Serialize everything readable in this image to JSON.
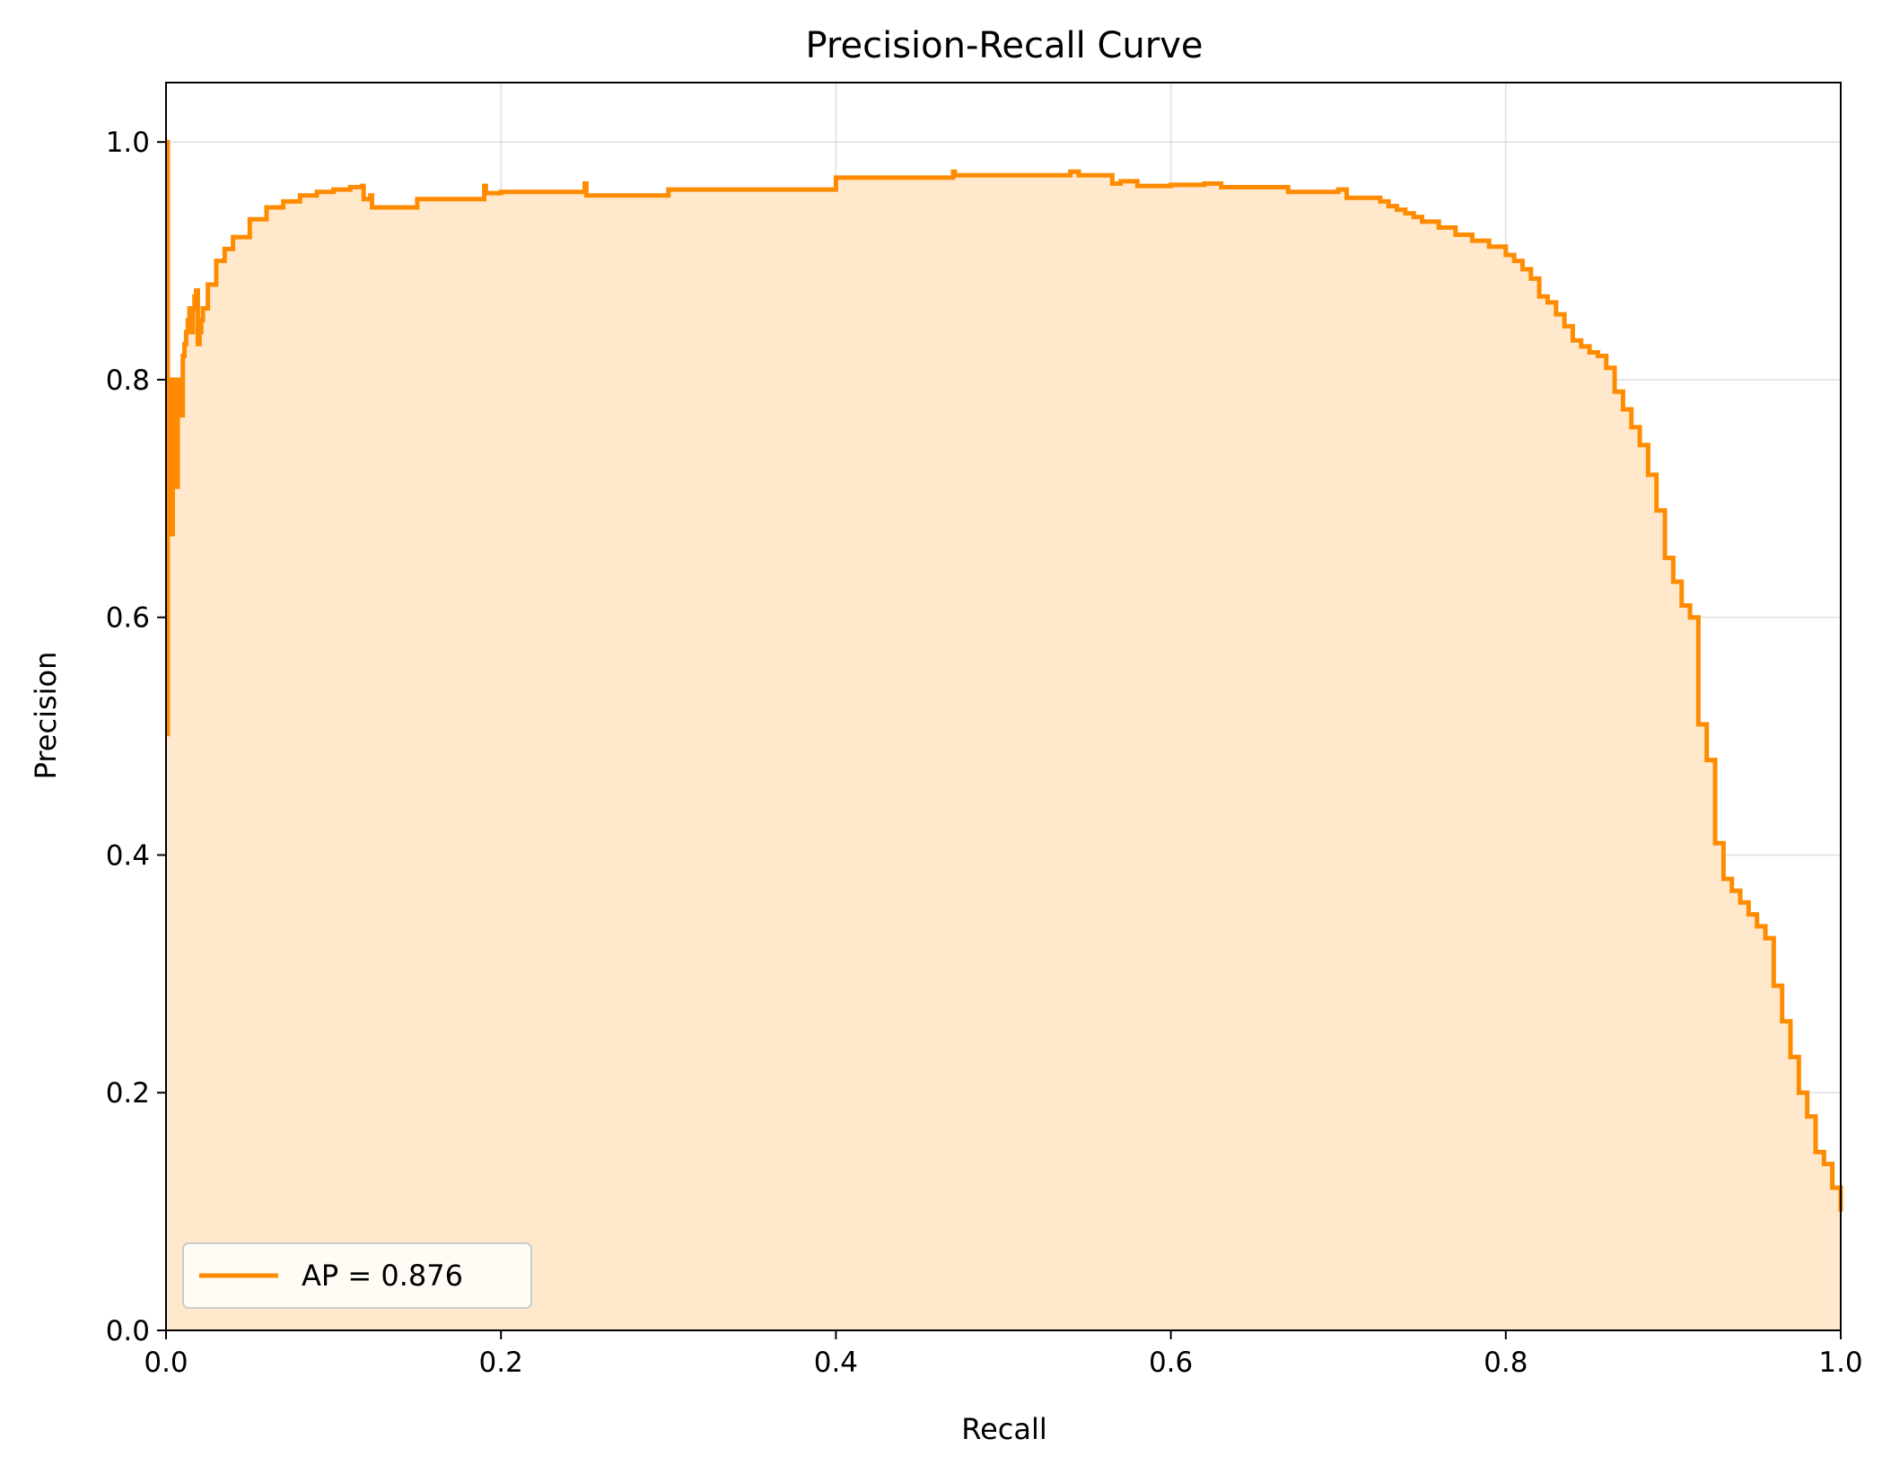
{
  "chart_data": {
    "type": "line",
    "title": "Precision-Recall Curve",
    "xlabel": "Recall",
    "ylabel": "Precision",
    "xlim": [
      0.0,
      1.0
    ],
    "ylim": [
      0.0,
      1.05
    ],
    "xticks": [
      0.0,
      0.2,
      0.4,
      0.6,
      0.8,
      1.0
    ],
    "xtick_labels": [
      "0.0",
      "0.2",
      "0.4",
      "0.6",
      "0.8",
      "1.0"
    ],
    "yticks": [
      0.0,
      0.2,
      0.4,
      0.6,
      0.8,
      1.0
    ],
    "ytick_labels": [
      "0.0",
      "0.2",
      "0.4",
      "0.6",
      "0.8",
      "1.0"
    ],
    "grid": true,
    "legend": {
      "placement": "lower-left",
      "entries": [
        "AP = 0.876"
      ]
    },
    "fill_under_curve": true,
    "colors": {
      "line": "#ff8c00",
      "fill": "#ffe8cc"
    },
    "series": [
      {
        "name": "AP = 0.876",
        "step": true,
        "x": [
          0.0,
          0.001,
          0.001,
          0.002,
          0.002,
          0.003,
          0.004,
          0.005,
          0.006,
          0.007,
          0.008,
          0.009,
          0.01,
          0.011,
          0.012,
          0.013,
          0.014,
          0.015,
          0.016,
          0.017,
          0.018,
          0.019,
          0.02,
          0.021,
          0.022,
          0.025,
          0.03,
          0.035,
          0.04,
          0.05,
          0.06,
          0.07,
          0.08,
          0.09,
          0.1,
          0.11,
          0.117,
          0.118,
          0.122,
          0.123,
          0.125,
          0.15,
          0.19,
          0.191,
          0.2,
          0.25,
          0.251,
          0.3,
          0.4,
          0.47,
          0.471,
          0.54,
          0.545,
          0.565,
          0.57,
          0.58,
          0.6,
          0.62,
          0.63,
          0.65,
          0.67,
          0.7,
          0.705,
          0.72,
          0.725,
          0.73,
          0.735,
          0.74,
          0.745,
          0.75,
          0.76,
          0.77,
          0.78,
          0.79,
          0.8,
          0.805,
          0.81,
          0.815,
          0.82,
          0.825,
          0.83,
          0.835,
          0.84,
          0.845,
          0.85,
          0.855,
          0.86,
          0.865,
          0.87,
          0.875,
          0.88,
          0.885,
          0.89,
          0.895,
          0.9,
          0.905,
          0.91,
          0.915,
          0.92,
          0.925,
          0.93,
          0.935,
          0.94,
          0.945,
          0.95,
          0.955,
          0.96,
          0.965,
          0.97,
          0.975,
          0.98,
          0.985,
          0.99,
          0.995,
          1.0
        ],
        "y": [
          1.0,
          0.5,
          0.75,
          0.67,
          0.8,
          0.67,
          0.78,
          0.8,
          0.71,
          0.79,
          0.8,
          0.77,
          0.82,
          0.83,
          0.84,
          0.85,
          0.86,
          0.84,
          0.86,
          0.87,
          0.875,
          0.83,
          0.84,
          0.85,
          0.86,
          0.88,
          0.9,
          0.91,
          0.92,
          0.935,
          0.945,
          0.95,
          0.955,
          0.958,
          0.96,
          0.962,
          0.963,
          0.952,
          0.955,
          0.945,
          0.945,
          0.952,
          0.963,
          0.957,
          0.958,
          0.965,
          0.955,
          0.96,
          0.97,
          0.975,
          0.972,
          0.975,
          0.972,
          0.965,
          0.967,
          0.963,
          0.964,
          0.965,
          0.962,
          0.962,
          0.958,
          0.96,
          0.953,
          0.953,
          0.95,
          0.946,
          0.943,
          0.94,
          0.937,
          0.933,
          0.928,
          0.922,
          0.917,
          0.912,
          0.905,
          0.9,
          0.893,
          0.885,
          0.87,
          0.865,
          0.855,
          0.845,
          0.833,
          0.828,
          0.823,
          0.82,
          0.81,
          0.79,
          0.775,
          0.76,
          0.745,
          0.72,
          0.69,
          0.65,
          0.63,
          0.61,
          0.6,
          0.51,
          0.48,
          0.41,
          0.38,
          0.37,
          0.36,
          0.35,
          0.34,
          0.33,
          0.29,
          0.26,
          0.23,
          0.2,
          0.18,
          0.15,
          0.14,
          0.12,
          0.1
        ]
      }
    ]
  }
}
